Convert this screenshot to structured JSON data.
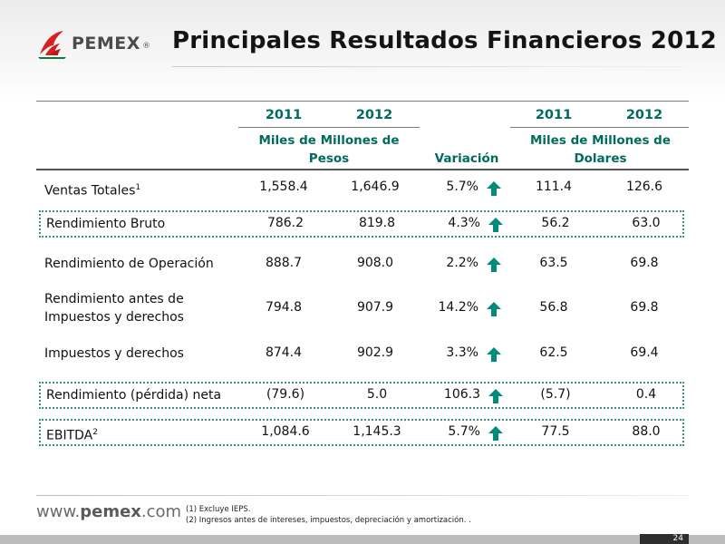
{
  "header": {
    "logo_text": "PEMEX",
    "logo_reg": "®",
    "title": "Principales Resultados Financieros 2012"
  },
  "table": {
    "years": [
      "2011",
      "2012",
      "2011",
      "2012"
    ],
    "unit_mxn": "Miles de Millones de Pesos",
    "unit_usd": "Miles de Millones de Dolares",
    "variation_header": "Variación",
    "rows": [
      {
        "label": "Ventas Totales",
        "sup": "1",
        "mxn_2011": "1,558.4",
        "mxn_2012": "1,646.9",
        "variation": "5.7%",
        "usd_2011": "111.4",
        "usd_2012": "126.6",
        "boxed": false
      },
      {
        "label": "Rendimiento Bruto",
        "sup": "",
        "mxn_2011": "786.2",
        "mxn_2012": "819.8",
        "variation": "4.3%",
        "usd_2011": "56.2",
        "usd_2012": "63.0",
        "boxed": true
      },
      {
        "label": "Rendimiento de Operación",
        "sup": "",
        "mxn_2011": "888.7",
        "mxn_2012": "908.0",
        "variation": "2.2%",
        "usd_2011": "63.5",
        "usd_2012": "69.8",
        "boxed": false
      },
      {
        "label": "Rendimiento antes de Impuestos y derechos",
        "sup": "",
        "mxn_2011": "794.8",
        "mxn_2012": "907.9",
        "variation": "14.2%",
        "usd_2011": "56.8",
        "usd_2012": "69.8",
        "boxed": false
      },
      {
        "label": "Impuestos y derechos",
        "sup": "",
        "mxn_2011": "874.4",
        "mxn_2012": "902.9",
        "variation": "3.3%",
        "usd_2011": "62.5",
        "usd_2012": "69.4",
        "boxed": false
      },
      {
        "label": "Rendimiento (pérdida) neta",
        "sup": "",
        "mxn_2011": "(79.6)",
        "mxn_2012": "5.0",
        "variation": "106.3",
        "usd_2011": "(5.7)",
        "usd_2012": "0.4",
        "boxed": true
      },
      {
        "label": "EBITDA",
        "sup": "2",
        "mxn_2011": "1,084.6",
        "mxn_2012": "1,145.3",
        "variation": "5.7%",
        "usd_2011": "77.5",
        "usd_2012": "88.0",
        "boxed": true
      }
    ],
    "arrow_icon": "up-arrow-icon",
    "arrow_color": "#008b7a"
  },
  "footer": {
    "url_prefix": "www.",
    "url_brand": "pemex",
    "url_suffix": ".com",
    "notes": [
      "(1) Excluye IEPS.",
      "(2)  Ingresos antes de intereses, impuestos, depreciación y amortización. ."
    ],
    "page_number": "24"
  },
  "colors": {
    "accent_green": "#006b5e",
    "logo_red": "#d4201f",
    "logo_green": "#0b7a3b"
  }
}
